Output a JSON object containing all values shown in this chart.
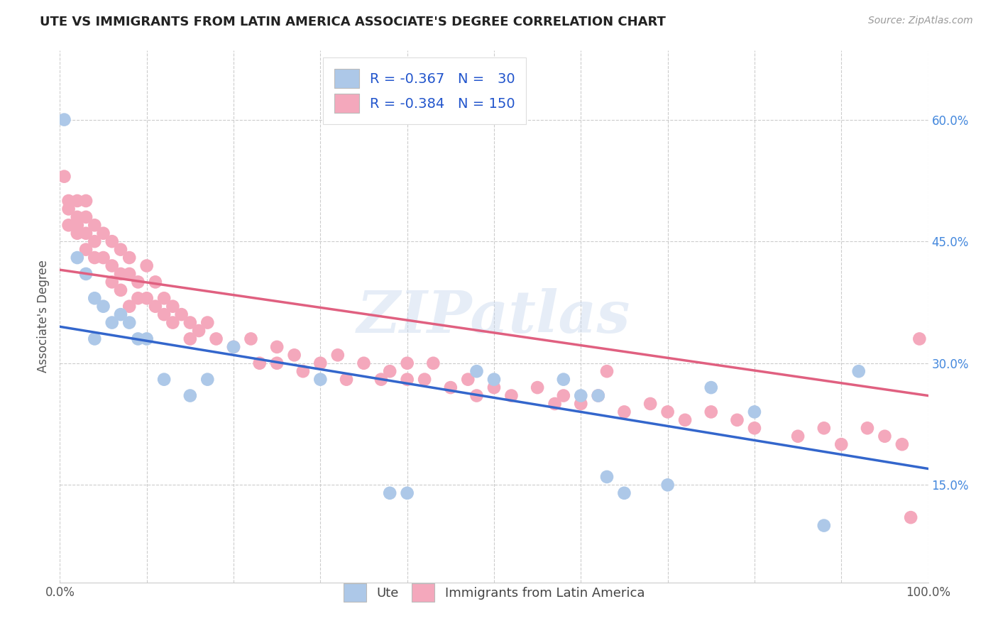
{
  "title": "UTE VS IMMIGRANTS FROM LATIN AMERICA ASSOCIATE'S DEGREE CORRELATION CHART",
  "source": "Source: ZipAtlas.com",
  "ylabel": "Associate's Degree",
  "watermark": "ZIPatlas",
  "ute_color": "#adc8e8",
  "immigrants_color": "#f4a8bc",
  "ute_line_color": "#3366cc",
  "immigrants_line_color": "#e06080",
  "background_color": "#ffffff",
  "ytick_labels": [
    "15.0%",
    "30.0%",
    "45.0%",
    "60.0%"
  ],
  "ytick_values": [
    0.15,
    0.3,
    0.45,
    0.6
  ],
  "ute_R": -0.367,
  "ute_N": 30,
  "immigrants_R": -0.384,
  "immigrants_N": 150,
  "ute_intercept": 0.345,
  "ute_slope": -0.175,
  "immigrants_intercept": 0.415,
  "immigrants_slope": -0.155,
  "ute_points_x": [
    0.005,
    0.02,
    0.03,
    0.04,
    0.04,
    0.05,
    0.06,
    0.07,
    0.08,
    0.09,
    0.1,
    0.12,
    0.15,
    0.17,
    0.2,
    0.3,
    0.38,
    0.4,
    0.48,
    0.5,
    0.58,
    0.6,
    0.62,
    0.63,
    0.65,
    0.7,
    0.75,
    0.8,
    0.88,
    0.92
  ],
  "ute_points_y": [
    0.6,
    0.43,
    0.41,
    0.38,
    0.33,
    0.37,
    0.35,
    0.36,
    0.35,
    0.33,
    0.33,
    0.28,
    0.26,
    0.28,
    0.32,
    0.28,
    0.14,
    0.14,
    0.29,
    0.28,
    0.28,
    0.26,
    0.26,
    0.16,
    0.14,
    0.15,
    0.27,
    0.24,
    0.1,
    0.29
  ],
  "immigrants_points_x": [
    0.005,
    0.01,
    0.01,
    0.01,
    0.02,
    0.02,
    0.02,
    0.02,
    0.03,
    0.03,
    0.03,
    0.03,
    0.04,
    0.04,
    0.04,
    0.05,
    0.05,
    0.06,
    0.06,
    0.06,
    0.07,
    0.07,
    0.07,
    0.08,
    0.08,
    0.08,
    0.09,
    0.09,
    0.1,
    0.1,
    0.11,
    0.11,
    0.12,
    0.12,
    0.13,
    0.13,
    0.14,
    0.15,
    0.15,
    0.16,
    0.17,
    0.18,
    0.2,
    0.22,
    0.23,
    0.25,
    0.25,
    0.27,
    0.28,
    0.3,
    0.32,
    0.33,
    0.35,
    0.37,
    0.38,
    0.4,
    0.4,
    0.42,
    0.43,
    0.45,
    0.47,
    0.48,
    0.5,
    0.52,
    0.55,
    0.57,
    0.58,
    0.6,
    0.62,
    0.63,
    0.65,
    0.68,
    0.7,
    0.72,
    0.75,
    0.78,
    0.8,
    0.85,
    0.88,
    0.9,
    0.93,
    0.95,
    0.97,
    0.98,
    0.99
  ],
  "immigrants_points_y": [
    0.53,
    0.5,
    0.49,
    0.47,
    0.5,
    0.48,
    0.47,
    0.46,
    0.5,
    0.48,
    0.46,
    0.44,
    0.47,
    0.45,
    0.43,
    0.46,
    0.43,
    0.45,
    0.42,
    0.4,
    0.44,
    0.41,
    0.39,
    0.43,
    0.41,
    0.37,
    0.4,
    0.38,
    0.42,
    0.38,
    0.4,
    0.37,
    0.38,
    0.36,
    0.37,
    0.35,
    0.36,
    0.35,
    0.33,
    0.34,
    0.35,
    0.33,
    0.32,
    0.33,
    0.3,
    0.32,
    0.3,
    0.31,
    0.29,
    0.3,
    0.31,
    0.28,
    0.3,
    0.28,
    0.29,
    0.3,
    0.28,
    0.28,
    0.3,
    0.27,
    0.28,
    0.26,
    0.27,
    0.26,
    0.27,
    0.25,
    0.26,
    0.25,
    0.26,
    0.29,
    0.24,
    0.25,
    0.24,
    0.23,
    0.24,
    0.23,
    0.22,
    0.21,
    0.22,
    0.2,
    0.22,
    0.21,
    0.2,
    0.11,
    0.33
  ],
  "xlim": [
    0.0,
    1.0
  ],
  "ylim": [
    0.03,
    0.685
  ]
}
